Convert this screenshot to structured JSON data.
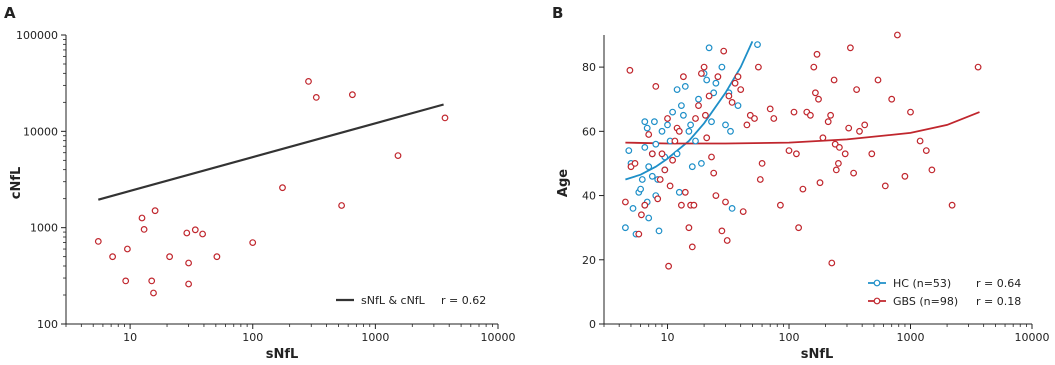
{
  "chart_data": [
    {
      "panel": "A",
      "type": "scatter",
      "xlabel": "sNfL",
      "ylabel": "cNfL",
      "x_scale": "log",
      "y_scale": "log",
      "xlim": [
        3,
        10000
      ],
      "ylim": [
        100,
        100000
      ],
      "x_ticks": [
        10,
        100,
        1000,
        10000
      ],
      "x_tick_labels": [
        "10",
        "100",
        "1000",
        "10000"
      ],
      "y_ticks": [
        100,
        1000,
        10000,
        100000
      ],
      "y_tick_labels": [
        "100",
        "1000",
        "10000",
        "100000"
      ],
      "grid": false,
      "legend_position": "bottom-right",
      "series": [
        {
          "color": "#c0262d",
          "points": [
            [
              5.5,
              720
            ],
            [
              7.2,
              500
            ],
            [
              9.2,
              280
            ],
            [
              9.5,
              600
            ],
            [
              12.5,
              1260
            ],
            [
              13,
              960
            ],
            [
              15,
              280
            ],
            [
              15.5,
              210
            ],
            [
              16,
              1500
            ],
            [
              21,
              500
            ],
            [
              29,
              880
            ],
            [
              30,
              430
            ],
            [
              30,
              260
            ],
            [
              34,
              950
            ],
            [
              39,
              860
            ],
            [
              51,
              500
            ],
            [
              100,
              700
            ],
            [
              175,
              2600
            ],
            [
              285,
              33000
            ],
            [
              330,
              22500
            ],
            [
              530,
              1700
            ],
            [
              650,
              24000
            ],
            [
              1530,
              5600
            ],
            [
              3700,
              13800
            ]
          ]
        }
      ],
      "lines": [
        {
          "label": "sNfL & cNfL",
          "stat": "r = 0.62",
          "color": "#333333",
          "points": [
            [
              5.5,
              1950
            ],
            [
              3600,
              19000
            ]
          ]
        }
      ]
    },
    {
      "panel": "B",
      "type": "scatter",
      "xlabel": "sNfL",
      "ylabel": "Age",
      "x_scale": "log",
      "y_scale": "linear",
      "xlim": [
        3,
        10000
      ],
      "ylim": [
        0,
        90
      ],
      "x_ticks": [
        10,
        100,
        1000,
        10000
      ],
      "x_tick_labels": [
        "10",
        "100",
        "1000",
        "10000"
      ],
      "y_ticks": [
        0,
        20,
        40,
        60,
        80
      ],
      "y_tick_labels": [
        "0",
        "20",
        "40",
        "60",
        "80"
      ],
      "grid": false,
      "legend_position": "bottom-right",
      "series": [
        {
          "name": "HC (n=53)",
          "stat": "r = 0.64",
          "color": "#1e8fc8",
          "points": [
            [
              4.5,
              30
            ],
            [
              4.8,
              54
            ],
            [
              5,
              50
            ],
            [
              5.2,
              36
            ],
            [
              5.5,
              28
            ],
            [
              5.8,
              41
            ],
            [
              6,
              42
            ],
            [
              6.2,
              45
            ],
            [
              6.5,
              63
            ],
            [
              6.5,
              55
            ],
            [
              6.5,
              37
            ],
            [
              6.8,
              61
            ],
            [
              7,
              49
            ],
            [
              7,
              33
            ],
            [
              7.5,
              53
            ],
            [
              7.5,
              46
            ],
            [
              7.8,
              63
            ],
            [
              8,
              56
            ],
            [
              8,
              40
            ],
            [
              8.3,
              45
            ],
            [
              8.5,
              29
            ],
            [
              9,
              60
            ],
            [
              9.5,
              52
            ],
            [
              10,
              62
            ],
            [
              10.5,
              57
            ],
            [
              11,
              66
            ],
            [
              12,
              73
            ],
            [
              12.5,
              41
            ],
            [
              13,
              68
            ],
            [
              13.5,
              65
            ],
            [
              14,
              74
            ],
            [
              15,
              60
            ],
            [
              15.5,
              62
            ],
            [
              16,
              49
            ],
            [
              17,
              57
            ],
            [
              18,
              70
            ],
            [
              19,
              50
            ],
            [
              20,
              78
            ],
            [
              21,
              76
            ],
            [
              22,
              86
            ],
            [
              23,
              63
            ],
            [
              24,
              72
            ],
            [
              25,
              75
            ],
            [
              28,
              80
            ],
            [
              30,
              62
            ],
            [
              32,
              72
            ],
            [
              33,
              60
            ],
            [
              34,
              36
            ],
            [
              38,
              68
            ],
            [
              55,
              87
            ],
            [
              12,
              53
            ],
            [
              9.5,
              48
            ],
            [
              6.8,
              38
            ]
          ]
        },
        {
          "name": "GBS (n=98)",
          "stat": "r = 0.18",
          "color": "#c0262d",
          "points": [
            [
              4.5,
              38
            ],
            [
              4.9,
              79
            ],
            [
              5,
              49
            ],
            [
              5.4,
              50
            ],
            [
              5.8,
              28
            ],
            [
              6.1,
              34
            ],
            [
              6.5,
              37
            ],
            [
              7,
              59
            ],
            [
              7.5,
              53
            ],
            [
              8,
              74
            ],
            [
              8.3,
              39
            ],
            [
              8.7,
              45
            ],
            [
              9,
              53
            ],
            [
              9.5,
              48
            ],
            [
              10,
              64
            ],
            [
              10.2,
              18
            ],
            [
              10.5,
              43
            ],
            [
              11,
              51
            ],
            [
              11.5,
              57
            ],
            [
              12,
              61
            ],
            [
              12.5,
              60
            ],
            [
              13,
              37
            ],
            [
              13.5,
              77
            ],
            [
              14,
              41
            ],
            [
              15,
              30
            ],
            [
              15.5,
              37
            ],
            [
              16,
              24
            ],
            [
              16.5,
              37
            ],
            [
              17,
              64
            ],
            [
              18,
              68
            ],
            [
              19,
              78
            ],
            [
              20,
              80
            ],
            [
              20.5,
              65
            ],
            [
              21,
              58
            ],
            [
              22,
              71
            ],
            [
              23,
              52
            ],
            [
              24,
              47
            ],
            [
              25,
              40
            ],
            [
              26,
              77
            ],
            [
              28,
              29
            ],
            [
              29,
              85
            ],
            [
              30,
              38
            ],
            [
              31,
              26
            ],
            [
              32,
              71
            ],
            [
              34,
              69
            ],
            [
              36,
              75
            ],
            [
              38,
              77
            ],
            [
              40,
              73
            ],
            [
              42,
              35
            ],
            [
              45,
              62
            ],
            [
              48,
              65
            ],
            [
              52,
              64
            ],
            [
              56,
              80
            ],
            [
              60,
              50
            ],
            [
              70,
              67
            ],
            [
              75,
              64
            ],
            [
              85,
              37
            ],
            [
              100,
              54
            ],
            [
              110,
              66
            ],
            [
              115,
              53
            ],
            [
              120,
              30
            ],
            [
              130,
              42
            ],
            [
              140,
              66
            ],
            [
              160,
              80
            ],
            [
              165,
              72
            ],
            [
              170,
              84
            ],
            [
              175,
              70
            ],
            [
              180,
              44
            ],
            [
              190,
              58
            ],
            [
              210,
              63
            ],
            [
              220,
              65
            ],
            [
              225,
              19
            ],
            [
              235,
              76
            ],
            [
              240,
              56
            ],
            [
              245,
              48
            ],
            [
              255,
              50
            ],
            [
              290,
              53
            ],
            [
              310,
              61
            ],
            [
              320,
              86
            ],
            [
              340,
              47
            ],
            [
              360,
              73
            ],
            [
              380,
              60
            ],
            [
              420,
              62
            ],
            [
              480,
              53
            ],
            [
              540,
              76
            ],
            [
              620,
              43
            ],
            [
              700,
              70
            ],
            [
              780,
              90
            ],
            [
              900,
              46
            ],
            [
              1200,
              57
            ],
            [
              1350,
              54
            ],
            [
              1500,
              48
            ],
            [
              2200,
              37
            ],
            [
              3600,
              80
            ],
            [
              1000,
              66
            ],
            [
              260,
              55
            ],
            [
              150,
              65
            ],
            [
              58,
              45
            ]
          ]
        }
      ],
      "lines": [
        {
          "label": "HC (n=53)",
          "color": "#1e8fc8",
          "points": [
            [
              4.5,
              45
            ],
            [
              6,
              46.5
            ],
            [
              8,
              49
            ],
            [
              10,
              51.5
            ],
            [
              15,
              57
            ],
            [
              20,
              62.5
            ],
            [
              30,
              72
            ],
            [
              40,
              80
            ],
            [
              50,
              88
            ]
          ]
        },
        {
          "label": "GBS (n=98)",
          "color": "#c0262d",
          "points": [
            [
              4.5,
              56.5
            ],
            [
              10,
              56.2
            ],
            [
              30,
              56.2
            ],
            [
              100,
              56.5
            ],
            [
              300,
              57.5
            ],
            [
              1000,
              59.5
            ],
            [
              2000,
              62
            ],
            [
              3700,
              66
            ]
          ]
        }
      ]
    }
  ]
}
